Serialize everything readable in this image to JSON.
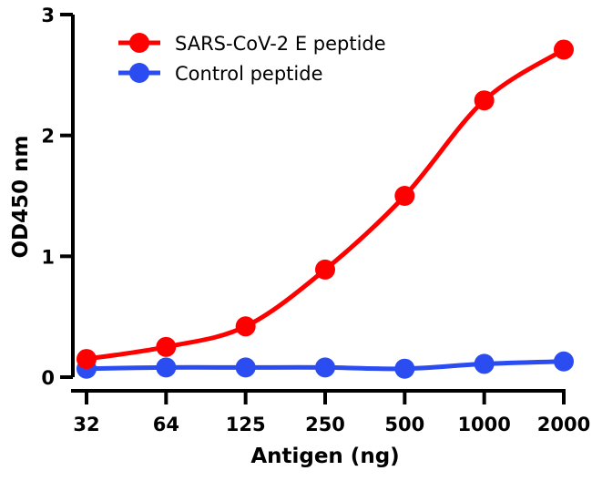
{
  "chart_data": {
    "type": "line",
    "title": "",
    "xlabel": "Antigen (ng)",
    "ylabel": "OD450 nm",
    "categories": [
      "32",
      "64",
      "125",
      "250",
      "500",
      "1000",
      "2000"
    ],
    "x_scale": "log2 (categorical spacing)",
    "ylim": [
      0,
      3
    ],
    "yticks": [
      0,
      1,
      2,
      3
    ],
    "grid": false,
    "legend_position": "top-left",
    "series": [
      {
        "name": "SARS-CoV-2 E peptide",
        "color": "#ff0000",
        "values": [
          0.15,
          0.25,
          0.42,
          0.89,
          1.5,
          2.29,
          2.71
        ]
      },
      {
        "name": "Control peptide",
        "color": "#2a4cf0",
        "values": [
          0.07,
          0.08,
          0.08,
          0.08,
          0.07,
          0.11,
          0.13
        ]
      }
    ]
  }
}
